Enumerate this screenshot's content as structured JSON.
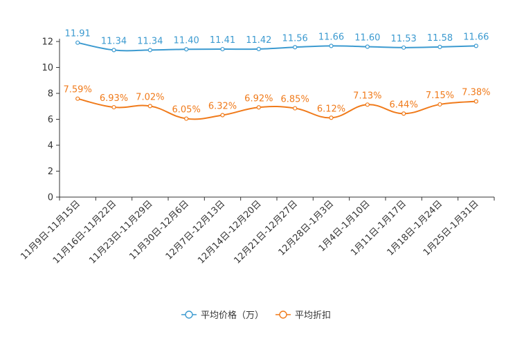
{
  "chart_data": {
    "type": "line",
    "categories": [
      "11月9日-11月15日",
      "11月16日-11月22日",
      "11月23日-11月29日",
      "11月30日-12月6日",
      "12月7日-12月13日",
      "12月14日-12月20日",
      "12月21日-12月27日",
      "12月28日-1月3日",
      "1月4日-1月10日",
      "1月11日-1月17日",
      "1月18日-1月24日",
      "1月25日-1月31日"
    ],
    "series": [
      {
        "name": "平均价格（万）",
        "color": "#3b9ad0",
        "values": [
          11.91,
          11.34,
          11.34,
          11.4,
          11.41,
          11.42,
          11.56,
          11.66,
          11.6,
          11.53,
          11.58,
          11.66
        ],
        "labels": [
          "11.91",
          "11.34",
          "11.34",
          "11.40",
          "11.41",
          "11.42",
          "11.56",
          "11.66",
          "11.60",
          "11.53",
          "11.58",
          "11.66"
        ]
      },
      {
        "name": "平均折扣",
        "color": "#f07a1a",
        "values": [
          7.59,
          6.93,
          7.02,
          6.05,
          6.32,
          6.92,
          6.85,
          6.12,
          7.13,
          6.44,
          7.15,
          7.38
        ],
        "labels": [
          "7.59%",
          "6.93%",
          "7.02%",
          "6.05%",
          "6.32%",
          "6.92%",
          "6.85%",
          "6.12%",
          "7.13%",
          "6.44%",
          "7.15%",
          "7.38%"
        ]
      }
    ],
    "ylim": [
      0,
      12
    ],
    "yticks": [
      "0",
      "2",
      "4",
      "6",
      "8",
      "10",
      "12"
    ],
    "title": "",
    "xlabel": "",
    "ylabel": "",
    "legend_position": "bottom-center"
  }
}
